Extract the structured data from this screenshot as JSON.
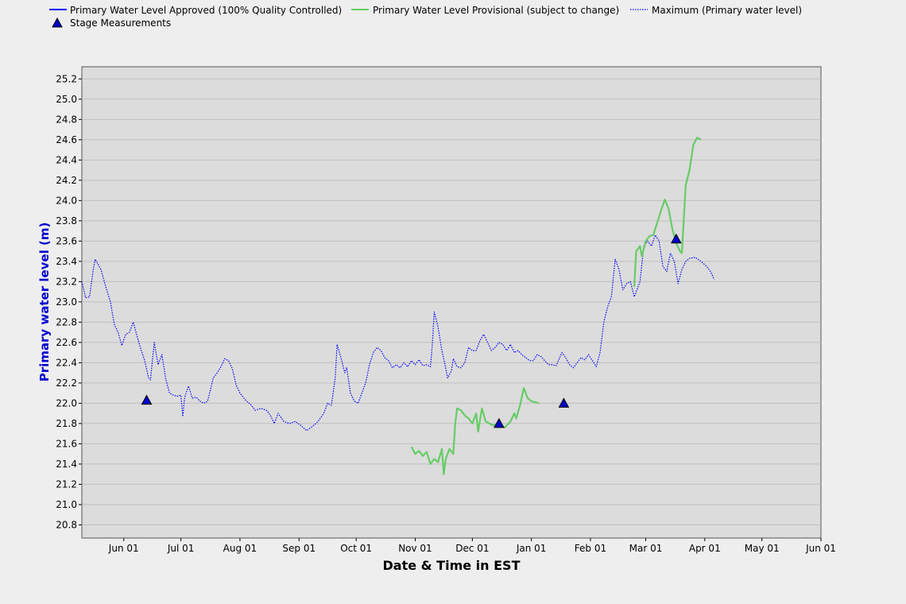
{
  "colors": {
    "approved": "#0000ff",
    "provisional": "#66cc66",
    "maximum": "#0000ff",
    "stage_marker": "#0000cc",
    "plot_bg": "#dcdcdc",
    "grid": "#bfbfbf",
    "ylabel": "#0000d0"
  },
  "chart_data": {
    "type": "line",
    "xlabel": "Date & Time in EST",
    "ylabel": "Primary water level (m)",
    "xlim": [
      "2023-05-10",
      "2024-06-01"
    ],
    "ylim": [
      20.67,
      25.32
    ],
    "x_ticks": [
      {
        "date": "2023-06-01",
        "label": "Jun 01"
      },
      {
        "date": "2023-07-01",
        "label": "Jul 01"
      },
      {
        "date": "2023-08-01",
        "label": "Aug 01"
      },
      {
        "date": "2023-09-01",
        "label": "Sep 01"
      },
      {
        "date": "2023-10-01",
        "label": "Oct 01"
      },
      {
        "date": "2023-11-01",
        "label": "Nov 01"
      },
      {
        "date": "2023-12-01",
        "label": "Dec 01"
      },
      {
        "date": "2024-01-01",
        "label": "Jan 01"
      },
      {
        "date": "2024-02-01",
        "label": "Feb 01"
      },
      {
        "date": "2024-03-01",
        "label": "Mar 01"
      },
      {
        "date": "2024-04-01",
        "label": "Apr 01"
      },
      {
        "date": "2024-05-01",
        "label": "May 01"
      },
      {
        "date": "2024-06-01",
        "label": "Jun 01"
      }
    ],
    "y_ticks": [
      "20.8",
      "21.0",
      "21.2",
      "21.4",
      "21.6",
      "21.8",
      "22.0",
      "22.2",
      "22.4",
      "22.6",
      "22.8",
      "23.0",
      "23.2",
      "23.4",
      "23.6",
      "23.8",
      "24.0",
      "24.2",
      "24.4",
      "24.6",
      "24.8",
      "25.0",
      "25.2"
    ],
    "grid": true,
    "legend_position": "top",
    "legend": [
      {
        "name": "Primary Water Level Approved (100% Quality Controlled)",
        "style": "solid-line",
        "color": "#0000ff"
      },
      {
        "name": "Primary Water Level Provisional (subject to change)",
        "style": "solid-line",
        "color": "#66cc66"
      },
      {
        "name": "Maximum (Primary water level)",
        "style": "dotted-line",
        "color": "#0000ff"
      },
      {
        "name": "Stage Measurements",
        "style": "triangle",
        "color": "#0000cc"
      }
    ],
    "series": [
      {
        "name": "Maximum (Primary water level)",
        "style": "dotted",
        "points": [
          [
            "2023-05-10",
            23.2
          ],
          [
            "2023-05-12",
            23.04
          ],
          [
            "2023-05-14",
            23.05
          ],
          [
            "2023-05-16",
            23.32
          ],
          [
            "2023-05-17",
            23.42
          ],
          [
            "2023-05-20",
            23.32
          ],
          [
            "2023-05-23",
            23.12
          ],
          [
            "2023-05-25",
            23.0
          ],
          [
            "2023-05-27",
            22.78
          ],
          [
            "2023-05-29",
            22.7
          ],
          [
            "2023-05-31",
            22.57
          ],
          [
            "2023-06-02",
            22.68
          ],
          [
            "2023-06-04",
            22.7
          ],
          [
            "2023-06-06",
            22.8
          ],
          [
            "2023-06-08",
            22.66
          ],
          [
            "2023-06-10",
            22.53
          ],
          [
            "2023-06-12",
            22.42
          ],
          [
            "2023-06-14",
            22.25
          ],
          [
            "2023-06-15",
            22.23
          ],
          [
            "2023-06-17",
            22.6
          ],
          [
            "2023-06-19",
            22.38
          ],
          [
            "2023-06-21",
            22.48
          ],
          [
            "2023-06-23",
            22.24
          ],
          [
            "2023-06-25",
            22.1
          ],
          [
            "2023-06-27",
            22.08
          ],
          [
            "2023-06-29",
            22.07
          ],
          [
            "2023-07-01",
            22.08
          ],
          [
            "2023-07-02",
            21.87
          ],
          [
            "2023-07-03",
            22.06
          ],
          [
            "2023-07-05",
            22.17
          ],
          [
            "2023-07-07",
            22.05
          ],
          [
            "2023-07-09",
            22.06
          ],
          [
            "2023-07-11",
            22.02
          ],
          [
            "2023-07-13",
            22.0
          ],
          [
            "2023-07-15",
            22.02
          ],
          [
            "2023-07-18",
            22.25
          ],
          [
            "2023-07-20",
            22.3
          ],
          [
            "2023-07-22",
            22.36
          ],
          [
            "2023-07-24",
            22.44
          ],
          [
            "2023-07-26",
            22.42
          ],
          [
            "2023-07-28",
            22.34
          ],
          [
            "2023-07-30",
            22.18
          ],
          [
            "2023-08-01",
            22.1
          ],
          [
            "2023-08-04",
            22.03
          ],
          [
            "2023-08-07",
            21.98
          ],
          [
            "2023-08-09",
            21.93
          ],
          [
            "2023-08-12",
            21.95
          ],
          [
            "2023-08-15",
            21.93
          ],
          [
            "2023-08-17",
            21.88
          ],
          [
            "2023-08-19",
            21.8
          ],
          [
            "2023-08-21",
            21.9
          ],
          [
            "2023-08-24",
            21.82
          ],
          [
            "2023-08-27",
            21.8
          ],
          [
            "2023-08-30",
            21.82
          ],
          [
            "2023-09-02",
            21.78
          ],
          [
            "2023-09-05",
            21.73
          ],
          [
            "2023-09-08",
            21.77
          ],
          [
            "2023-09-11",
            21.82
          ],
          [
            "2023-09-14",
            21.9
          ],
          [
            "2023-09-16",
            22.0
          ],
          [
            "2023-09-18",
            21.98
          ],
          [
            "2023-09-20",
            22.25
          ],
          [
            "2023-09-21",
            22.58
          ],
          [
            "2023-09-23",
            22.45
          ],
          [
            "2023-09-25",
            22.3
          ],
          [
            "2023-09-26",
            22.35
          ],
          [
            "2023-09-28",
            22.1
          ],
          [
            "2023-09-30",
            22.02
          ],
          [
            "2023-10-02",
            22.0
          ],
          [
            "2023-10-04",
            22.1
          ],
          [
            "2023-10-06",
            22.2
          ],
          [
            "2023-10-08",
            22.38
          ],
          [
            "2023-10-10",
            22.5
          ],
          [
            "2023-10-12",
            22.55
          ],
          [
            "2023-10-14",
            22.52
          ],
          [
            "2023-10-16",
            22.45
          ],
          [
            "2023-10-18",
            22.42
          ],
          [
            "2023-10-20",
            22.35
          ],
          [
            "2023-10-22",
            22.38
          ],
          [
            "2023-10-24",
            22.35
          ],
          [
            "2023-10-26",
            22.4
          ],
          [
            "2023-10-28",
            22.36
          ],
          [
            "2023-10-30",
            22.42
          ],
          [
            "2023-11-01",
            22.38
          ],
          [
            "2023-11-03",
            22.43
          ],
          [
            "2023-11-05",
            22.37
          ],
          [
            "2023-11-07",
            22.38
          ],
          [
            "2023-11-09",
            22.36
          ],
          [
            "2023-11-10",
            22.58
          ],
          [
            "2023-11-11",
            22.9
          ],
          [
            "2023-11-13",
            22.75
          ],
          [
            "2023-11-15",
            22.52
          ],
          [
            "2023-11-17",
            22.35
          ],
          [
            "2023-11-18",
            22.25
          ],
          [
            "2023-11-20",
            22.32
          ],
          [
            "2023-11-21",
            22.44
          ],
          [
            "2023-11-23",
            22.36
          ],
          [
            "2023-11-25",
            22.35
          ],
          [
            "2023-11-27",
            22.4
          ],
          [
            "2023-11-29",
            22.55
          ],
          [
            "2023-12-01",
            22.52
          ],
          [
            "2023-12-03",
            22.52
          ],
          [
            "2023-12-05",
            22.62
          ],
          [
            "2023-12-07",
            22.68
          ],
          [
            "2023-12-09",
            22.6
          ],
          [
            "2023-12-11",
            22.52
          ],
          [
            "2023-12-13",
            22.55
          ],
          [
            "2023-12-15",
            22.6
          ],
          [
            "2023-12-17",
            22.58
          ],
          [
            "2023-12-19",
            22.52
          ],
          [
            "2023-12-21",
            22.58
          ],
          [
            "2023-12-23",
            22.5
          ],
          [
            "2023-12-25",
            22.52
          ],
          [
            "2023-12-27",
            22.48
          ],
          [
            "2023-12-29",
            22.45
          ],
          [
            "2023-12-31",
            22.42
          ],
          [
            "2024-01-02",
            22.42
          ],
          [
            "2024-01-04",
            22.48
          ],
          [
            "2024-01-06",
            22.46
          ],
          [
            "2024-01-08",
            22.42
          ],
          [
            "2024-01-10",
            22.38
          ],
          [
            "2024-01-12",
            22.38
          ],
          [
            "2024-01-14",
            22.37
          ],
          [
            "2024-01-17",
            22.5
          ],
          [
            "2024-01-19",
            22.45
          ],
          [
            "2024-01-21",
            22.38
          ],
          [
            "2024-01-23",
            22.35
          ],
          [
            "2024-01-25",
            22.4
          ],
          [
            "2024-01-27",
            22.45
          ],
          [
            "2024-01-29",
            22.43
          ],
          [
            "2024-01-31",
            22.48
          ],
          [
            "2024-02-02",
            22.42
          ],
          [
            "2024-02-04",
            22.36
          ],
          [
            "2024-02-06",
            22.5
          ],
          [
            "2024-02-08",
            22.8
          ],
          [
            "2024-02-10",
            22.95
          ],
          [
            "2024-02-12",
            23.05
          ],
          [
            "2024-02-14",
            23.42
          ],
          [
            "2024-02-16",
            23.32
          ],
          [
            "2024-02-18",
            23.12
          ],
          [
            "2024-02-20",
            23.18
          ],
          [
            "2024-02-22",
            23.2
          ],
          [
            "2024-02-24",
            23.05
          ],
          [
            "2024-02-26",
            23.15
          ],
          [
            "2024-02-27",
            23.2
          ],
          [
            "2024-02-29",
            23.55
          ],
          [
            "2024-03-02",
            23.6
          ],
          [
            "2024-03-04",
            23.55
          ],
          [
            "2024-03-06",
            23.66
          ],
          [
            "2024-03-08",
            23.6
          ],
          [
            "2024-03-10",
            23.35
          ],
          [
            "2024-03-12",
            23.3
          ],
          [
            "2024-03-14",
            23.48
          ],
          [
            "2024-03-16",
            23.4
          ],
          [
            "2024-03-18",
            23.18
          ],
          [
            "2024-03-20",
            23.32
          ],
          [
            "2024-03-22",
            23.4
          ],
          [
            "2024-03-24",
            23.43
          ],
          [
            "2024-03-27",
            23.44
          ],
          [
            "2024-03-30",
            23.4
          ],
          [
            "2024-04-02",
            23.35
          ],
          [
            "2024-04-04",
            23.3
          ],
          [
            "2024-04-06",
            23.22
          ]
        ]
      },
      {
        "name": "Primary Water Level Provisional (subject to change)",
        "style": "solid",
        "points": [
          [
            "2023-10-30",
            21.57
          ],
          [
            "2023-11-01",
            21.5
          ],
          [
            "2023-11-03",
            21.53
          ],
          [
            "2023-11-05",
            21.48
          ],
          [
            "2023-11-07",
            21.52
          ],
          [
            "2023-11-09",
            21.4
          ],
          [
            "2023-11-11",
            21.45
          ],
          [
            "2023-11-13",
            21.42
          ],
          [
            "2023-11-15",
            21.55
          ],
          [
            "2023-11-16",
            21.3
          ],
          [
            "2023-11-17",
            21.45
          ],
          [
            "2023-11-19",
            21.55
          ],
          [
            "2023-11-21",
            21.5
          ],
          [
            "2023-11-22",
            21.8
          ],
          [
            "2023-11-23",
            21.95
          ],
          [
            "2023-11-25",
            21.93
          ],
          [
            "2023-11-27",
            21.88
          ],
          [
            "2023-11-29",
            21.85
          ],
          [
            "2023-12-01",
            21.8
          ],
          [
            "2023-12-03",
            21.9
          ],
          [
            "2023-12-04",
            21.72
          ],
          [
            "2023-12-06",
            21.95
          ],
          [
            "2023-12-08",
            21.82
          ],
          [
            "2023-12-10",
            21.8
          ],
          [
            "2023-12-12",
            21.78
          ],
          [
            "2023-12-15",
            21.8
          ],
          [
            "2023-12-18",
            21.76
          ],
          [
            "2023-12-21",
            21.82
          ],
          [
            "2023-12-23",
            21.9
          ],
          [
            "2023-12-24",
            21.85
          ],
          [
            "2023-12-26",
            21.98
          ],
          [
            "2023-12-28",
            22.15
          ],
          [
            "2023-12-30",
            22.05
          ],
          [
            "2024-01-01",
            22.02
          ],
          [
            "2024-01-05",
            22.0
          ]
        ]
      },
      {
        "name": "Primary Water Level Provisional (subject to change)",
        "style": "solid",
        "points": [
          [
            "2024-02-24",
            23.15
          ],
          [
            "2024-02-25",
            23.5
          ],
          [
            "2024-02-27",
            23.55
          ],
          [
            "2024-02-28",
            23.45
          ],
          [
            "2024-03-01",
            23.6
          ],
          [
            "2024-03-03",
            23.65
          ],
          [
            "2024-03-05",
            23.66
          ],
          [
            "2024-03-07",
            23.78
          ],
          [
            "2024-03-09",
            23.9
          ],
          [
            "2024-03-11",
            24.01
          ],
          [
            "2024-03-13",
            23.92
          ],
          [
            "2024-03-15",
            23.72
          ],
          [
            "2024-03-17",
            23.58
          ],
          [
            "2024-03-19",
            23.5
          ],
          [
            "2024-03-20",
            23.48
          ],
          [
            "2024-03-22",
            24.15
          ],
          [
            "2024-03-24",
            24.3
          ],
          [
            "2024-03-26",
            24.55
          ],
          [
            "2024-03-28",
            24.62
          ],
          [
            "2024-03-30",
            24.6
          ]
        ]
      }
    ],
    "stage_measurements": [
      {
        "x": "2023-06-13",
        "y": 22.03
      },
      {
        "x": "2023-12-15",
        "y": 21.8
      },
      {
        "x": "2024-01-18",
        "y": 22.0
      },
      {
        "x": "2024-03-17",
        "y": 23.62
      }
    ]
  }
}
